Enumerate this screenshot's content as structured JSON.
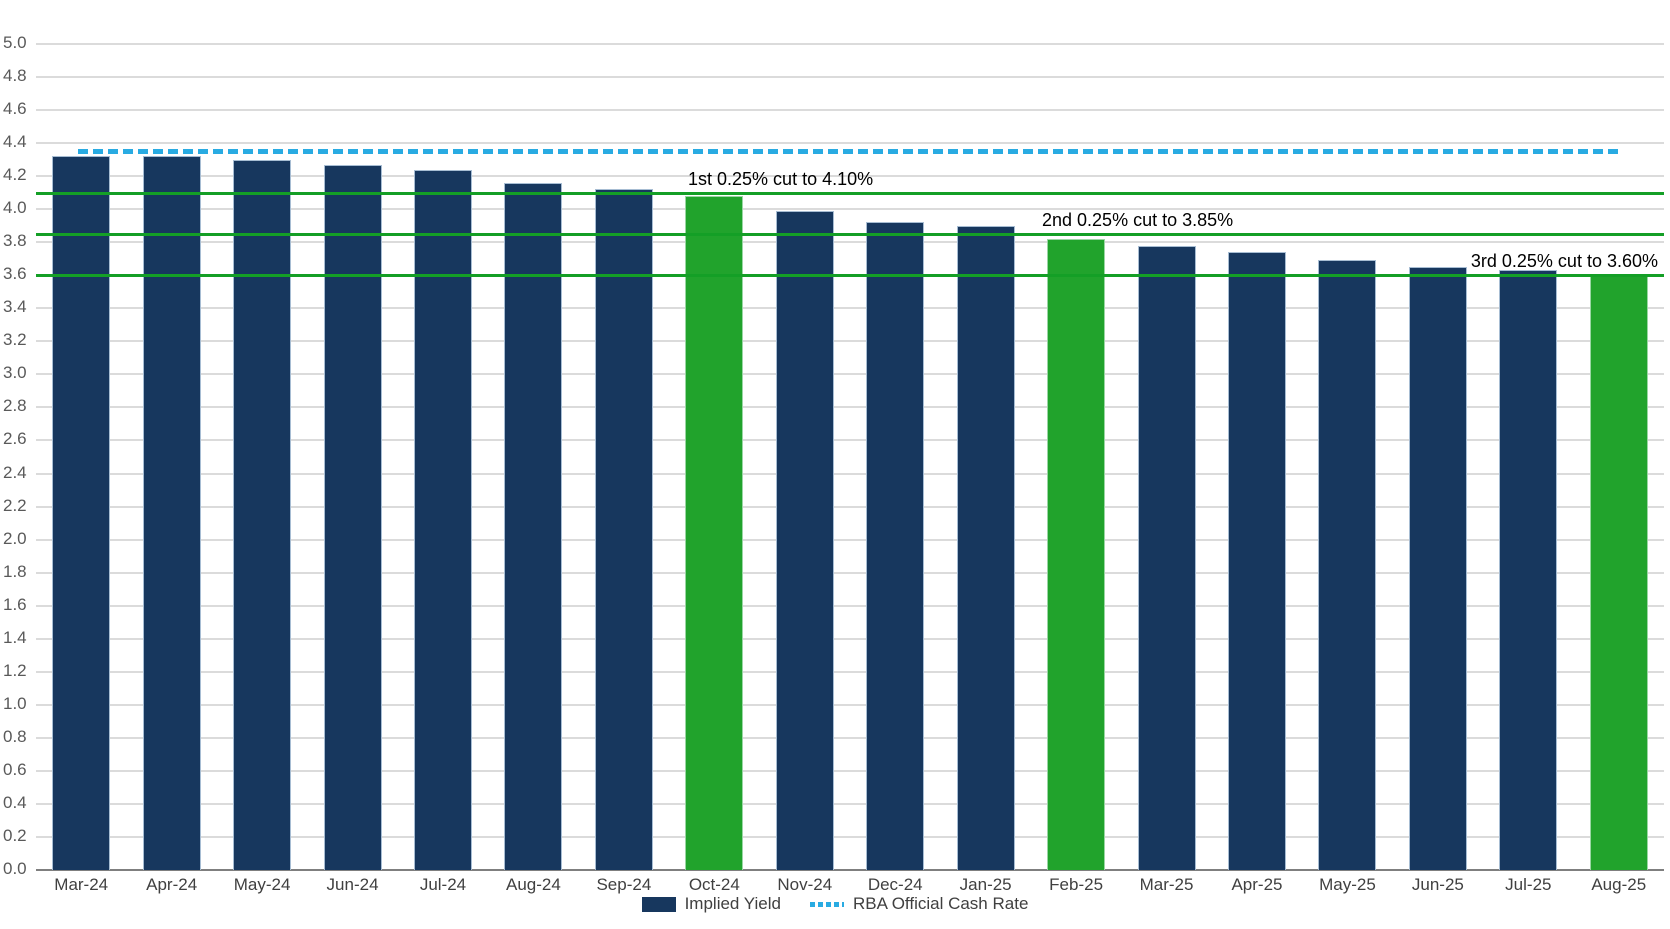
{
  "chart_data": {
    "type": "bar",
    "title": "",
    "categories": [
      "Mar-24",
      "Apr-24",
      "May-24",
      "Jun-24",
      "Jul-24",
      "Aug-24",
      "Sep-24",
      "Oct-24",
      "Nov-24",
      "Dec-24",
      "Jan-25",
      "Feb-25",
      "Mar-25",
      "Apr-25",
      "May-25",
      "Jun-25",
      "Jul-25",
      "Aug-25"
    ],
    "series": [
      {
        "name": "Implied Yield",
        "values": [
          4.32,
          4.32,
          4.3,
          4.27,
          4.24,
          4.16,
          4.12,
          4.08,
          3.99,
          3.92,
          3.9,
          3.82,
          3.78,
          3.74,
          3.69,
          3.65,
          3.63,
          3.6
        ]
      }
    ],
    "bar_colors": {
      "default": "#17375E",
      "highlight": "#21A32C",
      "highlight_indices": [
        7,
        11,
        17
      ]
    },
    "rba_line": {
      "name": "RBA Official Cash Rate",
      "value": 4.35,
      "style": "dashed",
      "color": "#29ABE2"
    },
    "reference_lines": [
      {
        "value": 4.1,
        "color": "#149F26"
      },
      {
        "value": 3.85,
        "color": "#149F26"
      },
      {
        "value": 3.6,
        "color": "#149F26"
      }
    ],
    "annotations": [
      {
        "text": "1st 0.25% cut to 4.10%",
        "anchor_value": 4.1
      },
      {
        "text": "2nd 0.25% cut to 3.85%",
        "anchor_value": 3.85
      },
      {
        "text": "3rd 0.25% cut to 3.60%",
        "anchor_value": 3.6
      }
    ],
    "y_axis": {
      "min": 0.0,
      "max": 5.0,
      "step": 0.2,
      "tick_labels": [
        "0.0",
        "0.2",
        "0.4",
        "0.6",
        "0.8",
        "1.0",
        "1.2",
        "1.4",
        "1.6",
        "1.8",
        "2.0",
        "2.2",
        "2.4",
        "2.6",
        "2.8",
        "3.0",
        "3.2",
        "3.4",
        "3.6",
        "3.8",
        "4.0",
        "4.2",
        "4.4",
        "4.6",
        "4.8",
        "5.0"
      ]
    },
    "grid": true,
    "legend_position": "bottom-center",
    "legend": [
      {
        "label": "Implied Yield",
        "swatch": "square",
        "color": "#17375E"
      },
      {
        "label": "RBA Official Cash Rate",
        "swatch": "dashed-line",
        "color": "#29ABE2"
      }
    ]
  }
}
